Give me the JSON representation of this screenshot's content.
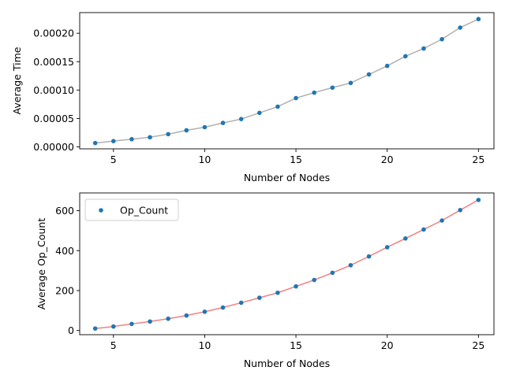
{
  "chart_data": [
    {
      "type": "scatter",
      "title": "",
      "xlabel": "Number of Nodes",
      "ylabel": "Average Time",
      "xlim": [
        3.15,
        25.85
      ],
      "ylim": [
        -3.4e-06,
        0.0002363
      ],
      "xticks": [
        5,
        10,
        15,
        20,
        25
      ],
      "xtick_labels": [
        "5",
        "10",
        "15",
        "20",
        "25"
      ],
      "yticks": [
        0,
        5e-05,
        0.0001,
        0.00015,
        0.0002
      ],
      "ytick_labels": [
        "0.00000",
        "0.00005",
        "0.00010",
        "0.00015",
        "0.00020"
      ],
      "grid": false,
      "legend": null,
      "point_color": "#1f77b4",
      "line_color": "#b0b0b0",
      "series": [
        {
          "x": [
            4,
            5,
            6,
            7,
            8,
            9,
            10,
            11,
            12,
            13,
            14,
            15,
            16,
            17,
            18,
            19,
            20,
            21,
            22,
            23,
            24,
            25
          ],
          "values": [
            6.8e-06,
            1.02e-05,
            1.36e-05,
            1.7e-05,
            2.24e-05,
            2.92e-05,
            3.47e-05,
            4.22e-05,
            4.9e-05,
            5.99e-05,
            7.08e-05,
            8.59e-05,
            9.54e-05,
            0.0001043,
            0.0001125,
            0.0001275,
            0.0001425,
            0.0001595,
            0.0001731,
            0.0001895,
            0.0002099,
            0.0002249
          ]
        }
      ]
    },
    {
      "type": "scatter",
      "title": "",
      "xlabel": "Number of Nodes",
      "ylabel": "Average Op_Count",
      "xlim": [
        3.15,
        25.85
      ],
      "ylim": [
        -21,
        689
      ],
      "xticks": [
        5,
        10,
        15,
        20,
        25
      ],
      "xtick_labels": [
        "5",
        "10",
        "15",
        "20",
        "25"
      ],
      "yticks": [
        0,
        200,
        400,
        600
      ],
      "ytick_labels": [
        "0",
        "200",
        "400",
        "600"
      ],
      "grid": false,
      "legend": "top-left",
      "point_color": "#1f77b4",
      "line_color": "#f08080",
      "series": [
        {
          "name": "Op_Count",
          "x": [
            4,
            5,
            6,
            7,
            8,
            9,
            10,
            11,
            12,
            13,
            14,
            15,
            16,
            17,
            18,
            19,
            20,
            21,
            22,
            23,
            24,
            25
          ],
          "values": [
            10,
            20,
            33,
            45,
            59,
            75,
            94,
            115,
            139,
            164,
            189,
            221,
            253,
            289,
            327,
            371,
            417,
            461,
            506,
            551,
            603,
            654
          ]
        }
      ]
    }
  ]
}
